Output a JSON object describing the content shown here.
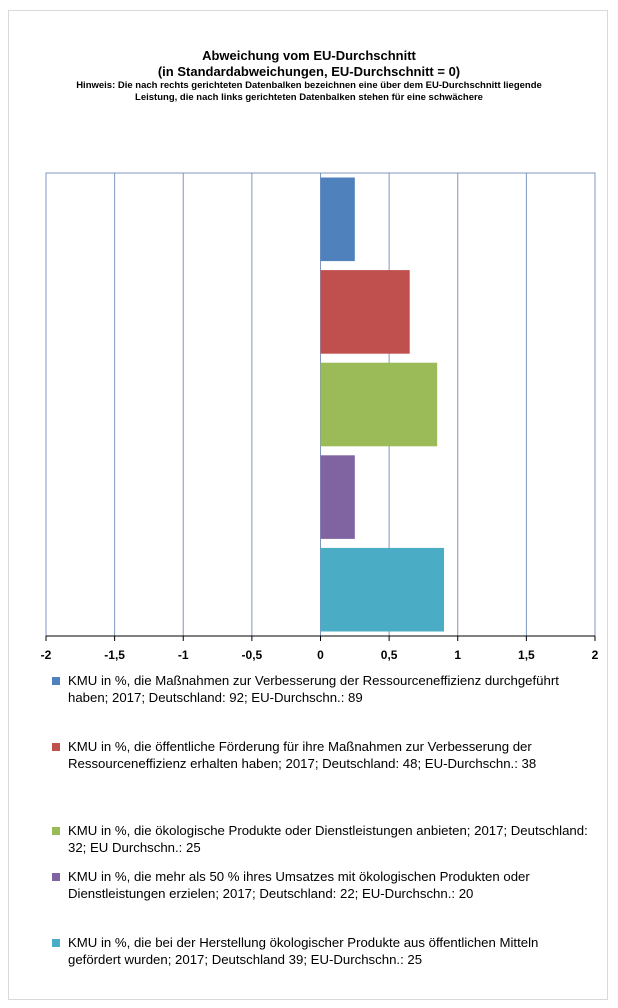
{
  "chart_data": {
    "type": "bar",
    "orientation": "horizontal",
    "title": "Abweichung vom EU-Durchschnitt",
    "subtitle": "(in Standardabweichungen, EU-Durchschnitt = 0)",
    "note": "Hinweis: Die nach rechts gerichteten Datenbalken bezeichnen eine über dem EU-Durchschnitt liegende Leistung, die nach links gerichteten Datenbalken stehen für eine schwächere",
    "xlim": [
      -2,
      2
    ],
    "x_ticks": [
      "-2",
      "-1,5",
      "-1",
      "-0,5",
      "0",
      "0,5",
      "1",
      "1,5",
      "2"
    ],
    "grid": "vertical",
    "legend_position": "bottom",
    "series": [
      {
        "name": "KMU in %, die Maßnahmen zur Verbesserung der Ressourceneffizienz durchgeführt haben; 2017; Deutschland: 92; EU-Durchschn.: 89",
        "value": 0.25,
        "color": "#4f81bd"
      },
      {
        "name": "KMU in %, die öffentliche Förderung für ihre Maßnahmen zur Verbesserung der Ressourceneffizienz erhalten haben; 2017; Deutschland: 48; EU-Durchschn.: 38",
        "value": 0.65,
        "color": "#c0504d"
      },
      {
        "name": "KMU in %, die ökologische Produkte oder Dienstleistungen anbieten; 2017; Deutschland: 32; EU Durchschn.: 25",
        "value": 0.85,
        "color": "#9bbb59"
      },
      {
        "name": "KMU in %, die mehr als 50 % ihres Umsatzes mit ökologischen Produkten oder Dienstleistungen erzielen; 2017; Deutschland: 22; EU-Durchschn.: 20",
        "value": 0.25,
        "color": "#8064a2"
      },
      {
        "name": "KMU in %, die bei der Herstellung ökologischer Produkte aus öffentlichen Mitteln gefördert wurden; 2017; Deutschland 39; EU-Durchschn.: 25",
        "value": 0.9,
        "color": "#4bacc6"
      }
    ]
  }
}
